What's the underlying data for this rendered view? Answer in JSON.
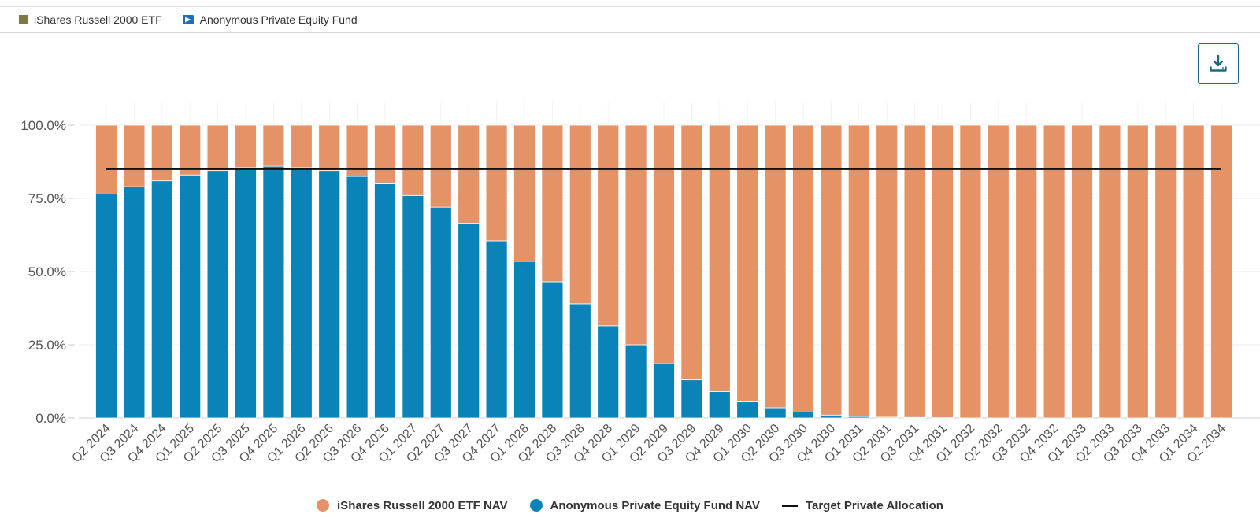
{
  "top_legend": {
    "items": [
      {
        "label": "iShares Russell 2000 ETF",
        "color": "#7d7a3c",
        "icon": "square-swatch-icon"
      },
      {
        "label": "Anonymous Private Equity Fund",
        "color": "#1f6fb5",
        "icon": "fund-flag-icon"
      }
    ]
  },
  "toolbar": {
    "download_icon": "download-icon"
  },
  "chart_data": {
    "type": "bar",
    "stacked": true,
    "title": "",
    "xlabel": "",
    "ylabel": "",
    "ylim": [
      0,
      100
    ],
    "yticks": [
      "0.0%",
      "25.0%",
      "50.0%",
      "75.0%",
      "100.0%"
    ],
    "categories": [
      "Q2 2024",
      "Q3 2024",
      "Q4 2024",
      "Q1 2025",
      "Q2 2025",
      "Q3 2025",
      "Q4 2025",
      "Q1 2026",
      "Q2 2026",
      "Q3 2026",
      "Q4 2026",
      "Q1 2027",
      "Q2 2027",
      "Q3 2027",
      "Q4 2027",
      "Q1 2028",
      "Q2 2028",
      "Q3 2028",
      "Q4 2028",
      "Q1 2029",
      "Q2 2029",
      "Q3 2029",
      "Q4 2029",
      "Q1 2030",
      "Q2 2030",
      "Q3 2030",
      "Q4 2030",
      "Q1 2031",
      "Q2 2031",
      "Q3 2031",
      "Q4 2031",
      "Q1 2032",
      "Q2 2032",
      "Q3 2032",
      "Q4 2032",
      "Q1 2033",
      "Q2 2033",
      "Q3 2033",
      "Q4 2033",
      "Q1 2034",
      "Q2 2034"
    ],
    "series": [
      {
        "name": "Anonymous Private Equity Fund NAV",
        "color": "#0a84b8",
        "values": [
          76.5,
          79,
          81,
          83,
          84.5,
          85.5,
          86,
          85.5,
          84.5,
          82.5,
          80,
          76,
          72,
          66.5,
          60.5,
          53.5,
          46.5,
          39,
          31.5,
          25,
          18.5,
          13,
          9,
          5.5,
          3.5,
          2,
          1,
          0.5,
          0.3,
          0.2,
          0.1,
          0,
          0,
          0,
          0,
          0,
          0,
          0,
          0,
          0,
          0
        ]
      },
      {
        "name": "iShares Russell 2000 ETF NAV",
        "color": "#e69267",
        "values": [
          23.5,
          21,
          19,
          17,
          15.5,
          14.5,
          14,
          14.5,
          15.5,
          17.5,
          20,
          24,
          28,
          33.5,
          39.5,
          46.5,
          53.5,
          61,
          68.5,
          75,
          81.5,
          87,
          91,
          94.5,
          96.5,
          98,
          99,
          99.5,
          99.7,
          99.8,
          99.9,
          100,
          100,
          100,
          100,
          100,
          100,
          100,
          100,
          100,
          100
        ]
      }
    ],
    "target_line": {
      "name": "Target Private Allocation",
      "value": 85,
      "color": "#111111"
    },
    "grid": true,
    "legend_position": "bottom-center"
  },
  "bottom_legend": {
    "items": [
      {
        "label": "iShares Russell 2000 ETF NAV",
        "color": "#e69267",
        "shape": "circle"
      },
      {
        "label": "Anonymous Private Equity Fund NAV",
        "color": "#0a84b8",
        "shape": "circle"
      },
      {
        "label": "Target Private Allocation",
        "color": "#111111",
        "shape": "line"
      }
    ]
  }
}
